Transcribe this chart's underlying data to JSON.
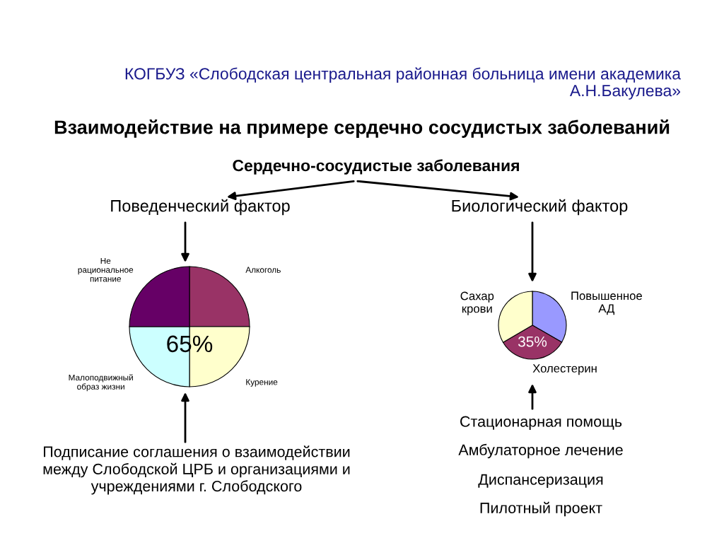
{
  "chart_data": [
    {
      "type": "other",
      "title": "Взаимодействие на примере сердечно сосудистых заболеваний",
      "subtitle": "Сердечно-сосудистые заболевания",
      "annotations": [
        "КОГБУЗ «Слободская центральная районная больница имени академика\nА.Н.Бакулева»"
      ]
    },
    {
      "type": "pie",
      "title": "Поведенческий фактор",
      "categories": [
        "Алкоголь",
        "Курение",
        "Малоподвижный\nобраз жизни",
        "Не\nрациональное\nпитание"
      ],
      "values": [
        25,
        25,
        25,
        25
      ],
      "colors": [
        "#993366",
        "#ffffcc",
        "#ccffff",
        "#660066"
      ],
      "annotations": [
        "65%",
        "Подписание соглашения о взаимодействии\nмежду Слободской ЦРБ и организациями и\nучреждениями г. Слободского"
      ]
    },
    {
      "type": "pie",
      "title": "Биологический фактор",
      "categories": [
        "Повышенное\nАД",
        "Холестерин",
        "Сахар\nкрови"
      ],
      "values": [
        33.3,
        33.3,
        33.4
      ],
      "colors": [
        "#9999ff",
        "#993366",
        "#ffffcc"
      ],
      "annotations": [
        "35%",
        "Стационарная помощь",
        "Амбулаторное лечение",
        "Диспансеризация",
        "Пилотный проект"
      ]
    }
  ]
}
